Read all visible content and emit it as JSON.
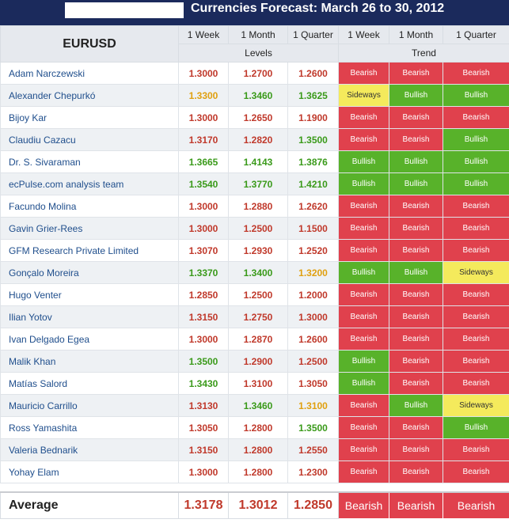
{
  "title": "Currencies Forecast: March 26 to 30, 2012",
  "pair": "EURUSD",
  "periods": [
    "1 Week",
    "1 Month",
    "1 Quarter"
  ],
  "group_levels": "Levels",
  "group_trend": "Trend",
  "colors": {
    "header_bg": "#1b2a5c",
    "down_text": "#c0392b",
    "up_text": "#3a9a1a",
    "side_text": "#e0a010",
    "bearish_bg": "#e0414d",
    "bullish_bg": "#58b22a",
    "sideways_bg": "#f4ea5c"
  },
  "rows": [
    {
      "name": "Adam Narczewski",
      "levels": [
        "1.3000",
        "1.2700",
        "1.2600"
      ],
      "trend": [
        "Bearish",
        "Bearish",
        "Bearish"
      ]
    },
    {
      "name": "Alexander Chepurkó",
      "levels": [
        "1.3300",
        "1.3460",
        "1.3625"
      ],
      "trend": [
        "Sideways",
        "Bullish",
        "Bullish"
      ]
    },
    {
      "name": "Bijoy Kar",
      "levels": [
        "1.3000",
        "1.2650",
        "1.1900"
      ],
      "trend": [
        "Bearish",
        "Bearish",
        "Bearish"
      ]
    },
    {
      "name": "Claudiu Cazacu",
      "levels": [
        "1.3170",
        "1.2820",
        "1.3500"
      ],
      "trend": [
        "Bearish",
        "Bearish",
        "Bullish"
      ]
    },
    {
      "name": "Dr. S. Sivaraman",
      "levels": [
        "1.3665",
        "1.4143",
        "1.3876"
      ],
      "trend": [
        "Bullish",
        "Bullish",
        "Bullish"
      ]
    },
    {
      "name": "ecPulse.com analysis team",
      "levels": [
        "1.3540",
        "1.3770",
        "1.4210"
      ],
      "trend": [
        "Bullish",
        "Bullish",
        "Bullish"
      ]
    },
    {
      "name": "Facundo Molina",
      "levels": [
        "1.3000",
        "1.2880",
        "1.2620"
      ],
      "trend": [
        "Bearish",
        "Bearish",
        "Bearish"
      ]
    },
    {
      "name": "Gavin Grier-Rees",
      "levels": [
        "1.3000",
        "1.2500",
        "1.1500"
      ],
      "trend": [
        "Bearish",
        "Bearish",
        "Bearish"
      ]
    },
    {
      "name": "GFM Research Private Limited",
      "levels": [
        "1.3070",
        "1.2930",
        "1.2520"
      ],
      "trend": [
        "Bearish",
        "Bearish",
        "Bearish"
      ]
    },
    {
      "name": "Gonçalo Moreira",
      "levels": [
        "1.3370",
        "1.3400",
        "1.3200"
      ],
      "trend": [
        "Bullish",
        "Bullish",
        "Sideways"
      ]
    },
    {
      "name": "Hugo Venter",
      "levels": [
        "1.2850",
        "1.2500",
        "1.2000"
      ],
      "trend": [
        "Bearish",
        "Bearish",
        "Bearish"
      ]
    },
    {
      "name": "Ilian Yotov",
      "levels": [
        "1.3150",
        "1.2750",
        "1.3000"
      ],
      "trend": [
        "Bearish",
        "Bearish",
        "Bearish"
      ]
    },
    {
      "name": "Ivan Delgado Egea",
      "levels": [
        "1.3000",
        "1.2870",
        "1.2600"
      ],
      "trend": [
        "Bearish",
        "Bearish",
        "Bearish"
      ]
    },
    {
      "name": "Malik Khan",
      "levels": [
        "1.3500",
        "1.2900",
        "1.2500"
      ],
      "trend": [
        "Bullish",
        "Bearish",
        "Bearish"
      ]
    },
    {
      "name": "Matías Salord",
      "levels": [
        "1.3430",
        "1.3100",
        "1.3050"
      ],
      "trend": [
        "Bullish",
        "Bearish",
        "Bearish"
      ]
    },
    {
      "name": "Mauricio Carrillo",
      "levels": [
        "1.3130",
        "1.3460",
        "1.3100"
      ],
      "trend": [
        "Bearish",
        "Bullish",
        "Sideways"
      ]
    },
    {
      "name": "Ross Yamashita",
      "levels": [
        "1.3050",
        "1.2800",
        "1.3500"
      ],
      "trend": [
        "Bearish",
        "Bearish",
        "Bullish"
      ]
    },
    {
      "name": "Valeria Bednarik",
      "levels": [
        "1.3150",
        "1.2800",
        "1.2550"
      ],
      "trend": [
        "Bearish",
        "Bearish",
        "Bearish"
      ]
    },
    {
      "name": "Yohay Elam",
      "levels": [
        "1.3000",
        "1.2800",
        "1.2300"
      ],
      "trend": [
        "Bearish",
        "Bearish",
        "Bearish"
      ]
    }
  ],
  "average": {
    "label": "Average",
    "levels": [
      "1.3178",
      "1.3012",
      "1.2850"
    ],
    "trend": [
      "Bearish",
      "Bearish",
      "Bearish"
    ]
  }
}
